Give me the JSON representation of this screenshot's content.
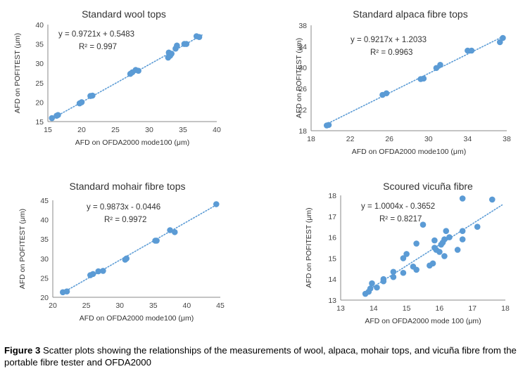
{
  "colors": {
    "point": "#5B9BD5",
    "axis": "#888888",
    "text": "#333333"
  },
  "chart_data": [
    {
      "type": "scatter",
      "title": "Standard wool tops",
      "xlabel": "AFD on OFDA2000 mode100 (μm)",
      "ylabel": "AFD on POFITEST (μm)",
      "xlim": [
        15,
        40
      ],
      "ylim": [
        15,
        40
      ],
      "xticks": [
        "15",
        "20",
        "25",
        "30",
        "35",
        "40"
      ],
      "yticks": [
        "15",
        "20",
        "25",
        "30",
        "35",
        "40"
      ],
      "equation": "y = 0.9721x + 0.5483",
      "r2": "R² = 0.997",
      "trend": {
        "slope": 0.9721,
        "intercept": 0.5483,
        "xrange": [
          15.5,
          38
        ]
      },
      "points": [
        [
          15.6,
          15.9
        ],
        [
          16.3,
          16.5
        ],
        [
          16.5,
          16.7
        ],
        [
          19.7,
          19.7
        ],
        [
          20.0,
          20.0
        ],
        [
          21.3,
          21.6
        ],
        [
          21.6,
          21.7
        ],
        [
          27.2,
          27.3
        ],
        [
          27.5,
          27.7
        ],
        [
          28.0,
          28.3
        ],
        [
          28.4,
          28.1
        ],
        [
          32.8,
          31.5
        ],
        [
          32.9,
          32.8
        ],
        [
          33.1,
          32.0
        ],
        [
          33.3,
          32.5
        ],
        [
          33.9,
          33.8
        ],
        [
          34.1,
          34.6
        ],
        [
          35.2,
          35.0
        ],
        [
          35.5,
          35.0
        ],
        [
          37.0,
          37.0
        ],
        [
          37.4,
          36.8
        ]
      ]
    },
    {
      "type": "scatter",
      "title": "Standard alpaca fibre tops",
      "xlabel": "AFD on OFDA2000 mode100 (μm)",
      "ylabel": "AFD on POFITEST (μm)",
      "xlim": [
        18,
        38
      ],
      "ylim": [
        18,
        38
      ],
      "xticks": [
        "18",
        "22",
        "26",
        "30",
        "34",
        "38"
      ],
      "yticks": [
        "18",
        "22",
        "26",
        "30",
        "34",
        "38"
      ],
      "equation": "y = 0.9217x + 1.2033",
      "r2": "R² = 0.9963",
      "trend": {
        "slope": 0.9217,
        "intercept": 1.2033,
        "xrange": [
          19.5,
          37.6
        ]
      },
      "points": [
        [
          19.6,
          19.0
        ],
        [
          19.8,
          19.1
        ],
        [
          25.3,
          24.8
        ],
        [
          25.7,
          25.1
        ],
        [
          29.2,
          27.8
        ],
        [
          29.5,
          27.9
        ],
        [
          30.8,
          29.9
        ],
        [
          31.2,
          30.5
        ],
        [
          34.0,
          33.2
        ],
        [
          34.4,
          33.2
        ],
        [
          37.3,
          34.8
        ],
        [
          37.6,
          35.6
        ]
      ]
    },
    {
      "type": "scatter",
      "title": "Standard mohair fibre tops",
      "xlabel": "AFD on OFDA2000 mode100 (μm)",
      "ylabel": "AFD on POFITEST (μm)",
      "xlim": [
        20,
        45
      ],
      "ylim": [
        20,
        45
      ],
      "xticks": [
        "20",
        "25",
        "30",
        "35",
        "40",
        "45"
      ],
      "yticks": [
        "20",
        "25",
        "30",
        "35",
        "40",
        "45"
      ],
      "equation": "y = 0.9873x - 0.0446",
      "r2": "R² = 0.9972",
      "trend": {
        "slope": 0.9873,
        "intercept": -0.0446,
        "xrange": [
          21.3,
          44.6
        ]
      },
      "points": [
        [
          21.5,
          21.3
        ],
        [
          22.1,
          21.5
        ],
        [
          25.6,
          25.7
        ],
        [
          26.0,
          26.0
        ],
        [
          26.8,
          26.7
        ],
        [
          27.5,
          26.8
        ],
        [
          30.8,
          29.7
        ],
        [
          31.0,
          30.0
        ],
        [
          35.3,
          34.6
        ],
        [
          35.5,
          34.6
        ],
        [
          37.5,
          37.3
        ],
        [
          38.2,
          36.8
        ],
        [
          44.4,
          44.0
        ]
      ]
    },
    {
      "type": "scatter",
      "title": "Scoured vicuña fibre",
      "xlabel": "AFD on OFDA2000 mode 100 (μm)",
      "ylabel": "AFD on POFITEST (μm)",
      "xlim": [
        13,
        18
      ],
      "ylim": [
        13,
        18
      ],
      "xticks": [
        "13",
        "14",
        "15",
        "16",
        "17",
        "18"
      ],
      "yticks": [
        "13",
        "14",
        "15",
        "16",
        "17",
        "18"
      ],
      "equation": "y = 1.0004x - 0.3652",
      "r2": "R² = 0.8217",
      "trend": {
        "slope": 1.0004,
        "intercept": -0.3652,
        "xrange": [
          13.7,
          17.9
        ]
      },
      "points": [
        [
          13.75,
          13.3
        ],
        [
          13.85,
          13.4
        ],
        [
          13.9,
          13.55
        ],
        [
          13.95,
          13.8
        ],
        [
          14.1,
          13.6
        ],
        [
          14.3,
          14.0
        ],
        [
          14.3,
          13.9
        ],
        [
          14.6,
          14.1
        ],
        [
          14.6,
          14.35
        ],
        [
          14.9,
          14.3
        ],
        [
          14.9,
          15.0
        ],
        [
          15.0,
          15.2
        ],
        [
          15.2,
          14.6
        ],
        [
          15.3,
          14.45
        ],
        [
          15.3,
          15.7
        ],
        [
          15.5,
          16.6
        ],
        [
          15.7,
          14.65
        ],
        [
          15.8,
          14.75
        ],
        [
          15.85,
          15.5
        ],
        [
          15.85,
          15.85
        ],
        [
          15.9,
          15.4
        ],
        [
          16.0,
          15.3
        ],
        [
          16.05,
          15.65
        ],
        [
          16.1,
          15.75
        ],
        [
          16.15,
          15.9
        ],
        [
          16.15,
          15.1
        ],
        [
          16.2,
          16.3
        ],
        [
          16.3,
          16.0
        ],
        [
          16.55,
          15.4
        ],
        [
          16.7,
          16.3
        ],
        [
          16.7,
          15.9
        ],
        [
          16.7,
          17.85
        ],
        [
          17.15,
          16.5
        ],
        [
          17.6,
          17.8
        ]
      ]
    }
  ],
  "caption": {
    "label": "Figure 3",
    "text": " Scatter plots showing the relationships of the measurements of wool, alpaca, mohair tops, and vicuña fibre from the portable fibre tester and OFDA2000"
  }
}
